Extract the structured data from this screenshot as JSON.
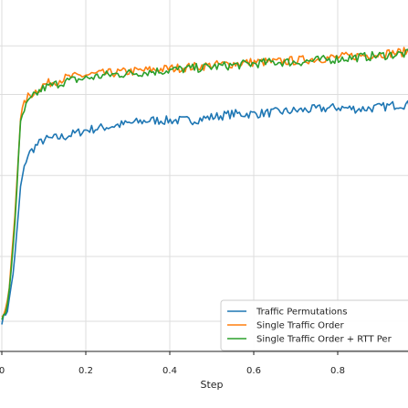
{
  "chart_data": {
    "type": "line",
    "xlabel": "Step",
    "ylabel": "",
    "title": "",
    "xlim": [
      0.0,
      0.98
    ],
    "ylim": [
      0.0,
      1.0
    ],
    "x_ticks": [
      {
        "value": 0.0,
        "label": "0"
      },
      {
        "value": 0.2,
        "label": "0.2"
      },
      {
        "value": 0.4,
        "label": "0.4"
      },
      {
        "value": 0.6,
        "label": "0.6"
      },
      {
        "value": 0.8,
        "label": "0.8"
      }
    ],
    "y_grid": [
      0.1,
      0.3,
      0.55,
      0.8,
      0.95
    ],
    "grid": true,
    "legend_position": "bottom-right",
    "series": [
      {
        "name": "Traffic Permutations",
        "color": "#1f77b4",
        "x": [
          0.0,
          0.015,
          0.03,
          0.045,
          0.06,
          0.08,
          0.1,
          0.15,
          0.2,
          0.25,
          0.3,
          0.35,
          0.4,
          0.45,
          0.5,
          0.55,
          0.6,
          0.65,
          0.7,
          0.75,
          0.8,
          0.85,
          0.9,
          0.95,
          0.98
        ],
        "y": [
          0.1,
          0.14,
          0.28,
          0.52,
          0.61,
          0.64,
          0.66,
          0.67,
          0.69,
          0.7,
          0.71,
          0.72,
          0.72,
          0.72,
          0.73,
          0.74,
          0.74,
          0.745,
          0.75,
          0.755,
          0.76,
          0.755,
          0.76,
          0.77,
          0.765
        ]
      },
      {
        "name": "Single Traffic Order",
        "color": "#ff7f0e",
        "x": [
          0.0,
          0.015,
          0.03,
          0.045,
          0.06,
          0.08,
          0.1,
          0.15,
          0.2,
          0.25,
          0.3,
          0.35,
          0.4,
          0.45,
          0.5,
          0.55,
          0.6,
          0.65,
          0.7,
          0.75,
          0.8,
          0.85,
          0.9,
          0.95,
          0.98
        ],
        "y": [
          0.11,
          0.16,
          0.4,
          0.74,
          0.79,
          0.81,
          0.83,
          0.85,
          0.86,
          0.865,
          0.87,
          0.875,
          0.88,
          0.885,
          0.89,
          0.895,
          0.9,
          0.9,
          0.905,
          0.91,
          0.915,
          0.92,
          0.925,
          0.93,
          0.935
        ]
      },
      {
        "name": "Single Traffic Order + RTT Per",
        "color": "#2ca02c",
        "x": [
          0.0,
          0.015,
          0.03,
          0.045,
          0.06,
          0.08,
          0.1,
          0.15,
          0.2,
          0.25,
          0.3,
          0.35,
          0.4,
          0.45,
          0.5,
          0.55,
          0.6,
          0.65,
          0.7,
          0.75,
          0.8,
          0.85,
          0.9,
          0.95,
          0.98
        ],
        "y": [
          0.1,
          0.15,
          0.38,
          0.72,
          0.77,
          0.8,
          0.82,
          0.84,
          0.85,
          0.86,
          0.865,
          0.87,
          0.875,
          0.88,
          0.885,
          0.89,
          0.895,
          0.9,
          0.9,
          0.905,
          0.91,
          0.915,
          0.92,
          0.925,
          0.925
        ]
      }
    ]
  }
}
